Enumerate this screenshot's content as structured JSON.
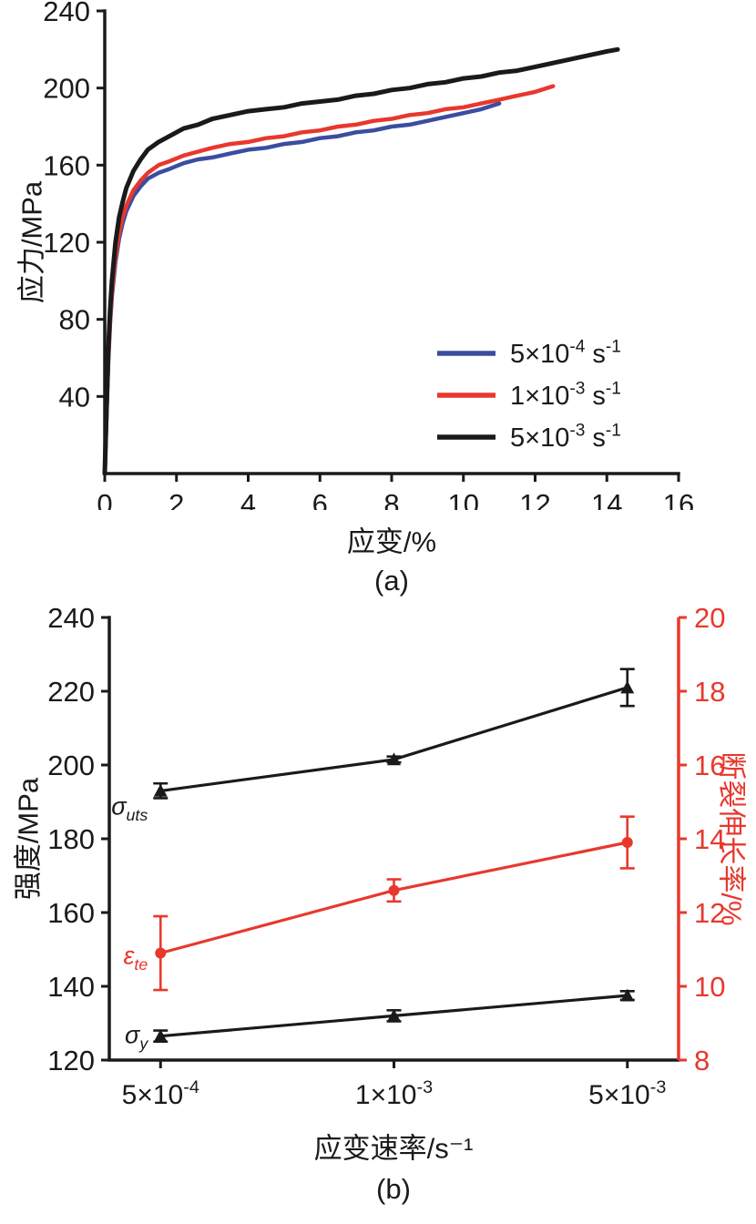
{
  "figure": {
    "caption_a": "(a)",
    "caption_b": "(b)"
  },
  "colors": {
    "blue": "#3b4da0",
    "red": "#e8382d",
    "black": "#1a1a1a"
  },
  "chart_data": [
    {
      "type": "line",
      "title": "",
      "xlabel": "应变/%",
      "ylabel": "应力/MPa",
      "xlim": [
        0,
        16
      ],
      "ylim": [
        0,
        240
      ],
      "xticks": [
        0,
        2,
        4,
        6,
        8,
        10,
        12,
        14,
        16
      ],
      "yticks": [
        40,
        80,
        120,
        160,
        200,
        240
      ],
      "grid": false,
      "legend_position": "inside-lower-right",
      "series": [
        {
          "name": "5×10⁻⁴ s⁻¹",
          "name_parts": [
            [
              "5×10",
              0
            ],
            [
              "-4",
              1
            ],
            [
              " s",
              0
            ],
            [
              "-1",
              1
            ]
          ],
          "color": "#3b4da0",
          "lw": 4.5,
          "points": [
            [
              0,
              0
            ],
            [
              0.05,
              30
            ],
            [
              0.1,
              58
            ],
            [
              0.15,
              78
            ],
            [
              0.2,
              92
            ],
            [
              0.3,
              110
            ],
            [
              0.4,
              122
            ],
            [
              0.5,
              130
            ],
            [
              0.6,
              136
            ],
            [
              0.8,
              144
            ],
            [
              1.0,
              149
            ],
            [
              1.2,
              153
            ],
            [
              1.5,
              156
            ],
            [
              1.8,
              158
            ],
            [
              2.2,
              161
            ],
            [
              2.6,
              163
            ],
            [
              3.0,
              164
            ],
            [
              3.5,
              166
            ],
            [
              4,
              168
            ],
            [
              4.5,
              169
            ],
            [
              5,
              171
            ],
            [
              5.5,
              172
            ],
            [
              6,
              174
            ],
            [
              6.5,
              175
            ],
            [
              7,
              177
            ],
            [
              7.5,
              178
            ],
            [
              8,
              180
            ],
            [
              8.5,
              181
            ],
            [
              9,
              183
            ],
            [
              9.5,
              185
            ],
            [
              10,
              187
            ],
            [
              10.5,
              189
            ],
            [
              11,
              192
            ]
          ]
        },
        {
          "name": "1×10⁻³ s⁻¹",
          "name_parts": [
            [
              "1×10",
              0
            ],
            [
              "-3",
              1
            ],
            [
              " s",
              0
            ],
            [
              "-1",
              1
            ]
          ],
          "color": "#e8382d",
          "lw": 4.5,
          "points": [
            [
              0,
              0
            ],
            [
              0.05,
              32
            ],
            [
              0.1,
              60
            ],
            [
              0.15,
              80
            ],
            [
              0.2,
              94
            ],
            [
              0.3,
              113
            ],
            [
              0.4,
              125
            ],
            [
              0.5,
              133
            ],
            [
              0.6,
              139
            ],
            [
              0.8,
              147
            ],
            [
              1.0,
              152
            ],
            [
              1.2,
              156
            ],
            [
              1.5,
              160
            ],
            [
              1.8,
              162
            ],
            [
              2.2,
              165
            ],
            [
              2.6,
              167
            ],
            [
              3.0,
              169
            ],
            [
              3.5,
              171
            ],
            [
              4,
              172
            ],
            [
              4.5,
              174
            ],
            [
              5,
              175
            ],
            [
              5.5,
              177
            ],
            [
              6,
              178
            ],
            [
              6.5,
              180
            ],
            [
              7,
              181
            ],
            [
              7.5,
              183
            ],
            [
              8,
              184
            ],
            [
              8.5,
              186
            ],
            [
              9,
              187
            ],
            [
              9.5,
              189
            ],
            [
              10,
              190
            ],
            [
              10.5,
              192
            ],
            [
              11,
              194
            ],
            [
              11.5,
              196
            ],
            [
              12,
              198
            ],
            [
              12.5,
              201
            ]
          ]
        },
        {
          "name": "5×10⁻³ s⁻¹",
          "name_parts": [
            [
              "5×10",
              0
            ],
            [
              "-3",
              1
            ],
            [
              " s",
              0
            ],
            [
              "-1",
              1
            ]
          ],
          "color": "#1a1a1a",
          "lw": 5,
          "points": [
            [
              0,
              0
            ],
            [
              0.05,
              34
            ],
            [
              0.1,
              64
            ],
            [
              0.15,
              85
            ],
            [
              0.2,
              100
            ],
            [
              0.3,
              120
            ],
            [
              0.4,
              133
            ],
            [
              0.5,
              141
            ],
            [
              0.6,
              148
            ],
            [
              0.8,
              157
            ],
            [
              1.0,
              163
            ],
            [
              1.2,
              168
            ],
            [
              1.5,
              172
            ],
            [
              1.8,
              175
            ],
            [
              2.2,
              179
            ],
            [
              2.6,
              181
            ],
            [
              3.0,
              184
            ],
            [
              3.5,
              186
            ],
            [
              4,
              188
            ],
            [
              4.5,
              189
            ],
            [
              5,
              190
            ],
            [
              5.5,
              192
            ],
            [
              6,
              193
            ],
            [
              6.5,
              194
            ],
            [
              7,
              196
            ],
            [
              7.5,
              197
            ],
            [
              8,
              199
            ],
            [
              8.5,
              200
            ],
            [
              9,
              202
            ],
            [
              9.5,
              203
            ],
            [
              10,
              205
            ],
            [
              10.5,
              206
            ],
            [
              11,
              208
            ],
            [
              11.5,
              209
            ],
            [
              12,
              211
            ],
            [
              12.5,
              213
            ],
            [
              13,
              215
            ],
            [
              13.5,
              217
            ],
            [
              14,
              219
            ],
            [
              14.3,
              220
            ]
          ]
        }
      ]
    },
    {
      "type": "line",
      "title": "",
      "xlabel": "应变速率/s⁻¹",
      "ylabel_left": "强度/MPa",
      "ylabel_right": "断裂伸长率/%",
      "ylim_left": [
        120,
        240
      ],
      "yticks_left": [
        120,
        140,
        160,
        180,
        200,
        220,
        240
      ],
      "ylim_right": [
        8,
        20
      ],
      "yticks_right": [
        8,
        10,
        12,
        14,
        16,
        18,
        20
      ],
      "categories": [
        "5×10⁻⁴",
        "1×10⁻³",
        "5×10⁻³"
      ],
      "categories_parts": [
        [
          [
            "5×10",
            0
          ],
          [
            "-4",
            1
          ]
        ],
        [
          [
            "1×10",
            0
          ],
          [
            "-3",
            1
          ]
        ],
        [
          [
            "5×10",
            0
          ],
          [
            "-3",
            1
          ]
        ]
      ],
      "cat_fracs": [
        0.09,
        0.5,
        0.91
      ],
      "axis_color_left": "#1a1a1a",
      "axis_color_right": "#e8382d",
      "grid": false,
      "series": [
        {
          "name": "σuts",
          "label_parts": [
            [
              "σ",
              0
            ],
            [
              "uts",
              2
            ]
          ],
          "axis": "left",
          "color": "#1a1a1a",
          "marker": "triangle",
          "values": [
            193,
            201.5,
            221
          ],
          "errors": [
            2,
            0.8,
            5
          ],
          "label_dx": -14,
          "label_dy": 26
        },
        {
          "name": "εte",
          "label_parts": [
            [
              "ε",
              0
            ],
            [
              "te",
              2
            ]
          ],
          "axis": "right",
          "color": "#e8382d",
          "marker": "circle",
          "values": [
            10.9,
            12.6,
            13.9
          ],
          "errors": [
            1.0,
            0.3,
            0.7
          ],
          "label_dx": -14,
          "label_dy": 12
        },
        {
          "name": "σy",
          "label_parts": [
            [
              "σ",
              0
            ],
            [
              "y",
              2
            ]
          ],
          "axis": "left",
          "color": "#1a1a1a",
          "marker": "triangle",
          "values": [
            126.5,
            132,
            137.5
          ],
          "errors": [
            1.5,
            1.5,
            1.2
          ],
          "label_dx": -14,
          "label_dy": 8
        }
      ]
    }
  ]
}
